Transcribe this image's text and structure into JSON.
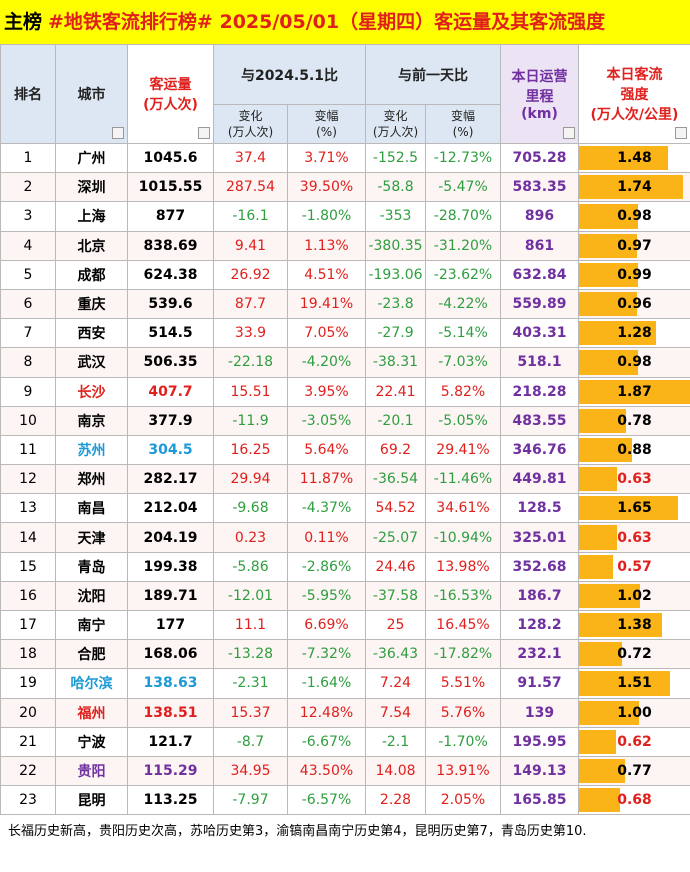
{
  "header": {
    "prefix": "主榜",
    "title": "#地铁客流排行榜# 2025/05/01（星期四）客运量及其客流强度"
  },
  "columns": {
    "rank": "排名",
    "city": "城市",
    "volume": [
      "客运量",
      "(万人次)"
    ],
    "yoy": "与2024.5.1比",
    "dod": "与前一天比",
    "yoy_change": [
      "变化",
      "(万人次)"
    ],
    "yoy_pct": [
      "变幅",
      "(%)"
    ],
    "dod_change": [
      "变化",
      "(万人次)"
    ],
    "dod_pct": [
      "变幅",
      "(%)"
    ],
    "mileage": [
      "本日运营",
      "里程",
      "(km)"
    ],
    "intensity": [
      "本日客流",
      "强度",
      "(万人次/公里)"
    ]
  },
  "rows": [
    {
      "rank": "1",
      "city": "广州",
      "volume": "1045.6",
      "yoy_change": "37.4",
      "yoy_pct": "3.71%",
      "dod_change": "-152.5",
      "dod_pct": "-12.73%",
      "mileage": "705.28",
      "intensity": "1.48"
    },
    {
      "rank": "2",
      "city": "深圳",
      "volume": "1015.55",
      "yoy_change": "287.54",
      "yoy_pct": "39.50%",
      "dod_change": "-58.8",
      "dod_pct": "-5.47%",
      "mileage": "583.35",
      "intensity": "1.74"
    },
    {
      "rank": "3",
      "city": "上海",
      "volume": "877",
      "yoy_change": "-16.1",
      "yoy_pct": "-1.80%",
      "dod_change": "-353",
      "dod_pct": "-28.70%",
      "mileage": "896",
      "intensity": "0.98"
    },
    {
      "rank": "4",
      "city": "北京",
      "volume": "838.69",
      "yoy_change": "9.41",
      "yoy_pct": "1.13%",
      "dod_change": "-380.35",
      "dod_pct": "-31.20%",
      "mileage": "861",
      "intensity": "0.97"
    },
    {
      "rank": "5",
      "city": "成都",
      "volume": "624.38",
      "yoy_change": "26.92",
      "yoy_pct": "4.51%",
      "dod_change": "-193.06",
      "dod_pct": "-23.62%",
      "mileage": "632.84",
      "intensity": "0.99"
    },
    {
      "rank": "6",
      "city": "重庆",
      "volume": "539.6",
      "yoy_change": "87.7",
      "yoy_pct": "19.41%",
      "dod_change": "-23.8",
      "dod_pct": "-4.22%",
      "mileage": "559.89",
      "intensity": "0.96"
    },
    {
      "rank": "7",
      "city": "西安",
      "volume": "514.5",
      "yoy_change": "33.9",
      "yoy_pct": "7.05%",
      "dod_change": "-27.9",
      "dod_pct": "-5.14%",
      "mileage": "403.31",
      "intensity": "1.28"
    },
    {
      "rank": "8",
      "city": "武汉",
      "volume": "506.35",
      "yoy_change": "-22.18",
      "yoy_pct": "-4.20%",
      "dod_change": "-38.31",
      "dod_pct": "-7.03%",
      "mileage": "518.1",
      "intensity": "0.98"
    },
    {
      "rank": "9",
      "city": "长沙",
      "volume": "407.7",
      "yoy_change": "15.51",
      "yoy_pct": "3.95%",
      "dod_change": "22.41",
      "dod_pct": "5.82%",
      "mileage": "218.28",
      "intensity": "1.87",
      "city_color": "#e0201c"
    },
    {
      "rank": "10",
      "city": "南京",
      "volume": "377.9",
      "yoy_change": "-11.9",
      "yoy_pct": "-3.05%",
      "dod_change": "-20.1",
      "dod_pct": "-5.05%",
      "mileage": "483.55",
      "intensity": "0.78"
    },
    {
      "rank": "11",
      "city": "苏州",
      "volume": "304.5",
      "yoy_change": "16.25",
      "yoy_pct": "5.64%",
      "dod_change": "69.2",
      "dod_pct": "29.41%",
      "mileage": "346.76",
      "intensity": "0.88",
      "city_color": "#1c9ad6"
    },
    {
      "rank": "12",
      "city": "郑州",
      "volume": "282.17",
      "yoy_change": "29.94",
      "yoy_pct": "11.87%",
      "dod_change": "-36.54",
      "dod_pct": "-11.46%",
      "mileage": "449.81",
      "intensity": "0.63",
      "intensity_color": "#e0201c"
    },
    {
      "rank": "13",
      "city": "南昌",
      "volume": "212.04",
      "yoy_change": "-9.68",
      "yoy_pct": "-4.37%",
      "dod_change": "54.52",
      "dod_pct": "34.61%",
      "mileage": "128.5",
      "intensity": "1.65"
    },
    {
      "rank": "14",
      "city": "天津",
      "volume": "204.19",
      "yoy_change": "0.23",
      "yoy_pct": "0.11%",
      "dod_change": "-25.07",
      "dod_pct": "-10.94%",
      "mileage": "325.01",
      "intensity": "0.63",
      "intensity_color": "#e0201c"
    },
    {
      "rank": "15",
      "city": "青岛",
      "volume": "199.38",
      "yoy_change": "-5.86",
      "yoy_pct": "-2.86%",
      "dod_change": "24.46",
      "dod_pct": "13.98%",
      "mileage": "352.68",
      "intensity": "0.57",
      "intensity_color": "#e0201c"
    },
    {
      "rank": "16",
      "city": "沈阳",
      "volume": "189.71",
      "yoy_change": "-12.01",
      "yoy_pct": "-5.95%",
      "dod_change": "-37.58",
      "dod_pct": "-16.53%",
      "mileage": "186.7",
      "intensity": "1.02"
    },
    {
      "rank": "17",
      "city": "南宁",
      "volume": "177",
      "yoy_change": "11.1",
      "yoy_pct": "6.69%",
      "dod_change": "25",
      "dod_pct": "16.45%",
      "mileage": "128.2",
      "intensity": "1.38"
    },
    {
      "rank": "18",
      "city": "合肥",
      "volume": "168.06",
      "yoy_change": "-13.28",
      "yoy_pct": "-7.32%",
      "dod_change": "-36.43",
      "dod_pct": "-17.82%",
      "mileage": "232.1",
      "intensity": "0.72"
    },
    {
      "rank": "19",
      "city": "哈尔滨",
      "volume": "138.63",
      "yoy_change": "-2.31",
      "yoy_pct": "-1.64%",
      "dod_change": "7.24",
      "dod_pct": "5.51%",
      "mileage": "91.57",
      "intensity": "1.51",
      "city_color": "#1c9ad6"
    },
    {
      "rank": "20",
      "city": "福州",
      "volume": "138.51",
      "yoy_change": "15.37",
      "yoy_pct": "12.48%",
      "dod_change": "7.54",
      "dod_pct": "5.76%",
      "mileage": "139",
      "intensity": "1.00",
      "city_color": "#e0201c"
    },
    {
      "rank": "21",
      "city": "宁波",
      "volume": "121.7",
      "yoy_change": "-8.7",
      "yoy_pct": "-6.67%",
      "dod_change": "-2.1",
      "dod_pct": "-1.70%",
      "mileage": "195.95",
      "intensity": "0.62",
      "intensity_color": "#e0201c"
    },
    {
      "rank": "22",
      "city": "贵阳",
      "volume": "115.29",
      "yoy_change": "34.95",
      "yoy_pct": "43.50%",
      "dod_change": "14.08",
      "dod_pct": "13.91%",
      "mileage": "149.13",
      "intensity": "0.77",
      "city_color": "#7030a0"
    },
    {
      "rank": "23",
      "city": "昆明",
      "volume": "113.25",
      "yoy_change": "-7.97",
      "yoy_pct": "-6.57%",
      "dod_change": "2.28",
      "dod_pct": "2.05%",
      "mileage": "165.85",
      "intensity": "0.68",
      "intensity_color": "#e0201c"
    }
  ],
  "footer": "长福历史新高，贵阳历史次高，苏哈历史第3，渝镐南昌南宁历史第4，昆明历史第7，青岛历史第10."
}
